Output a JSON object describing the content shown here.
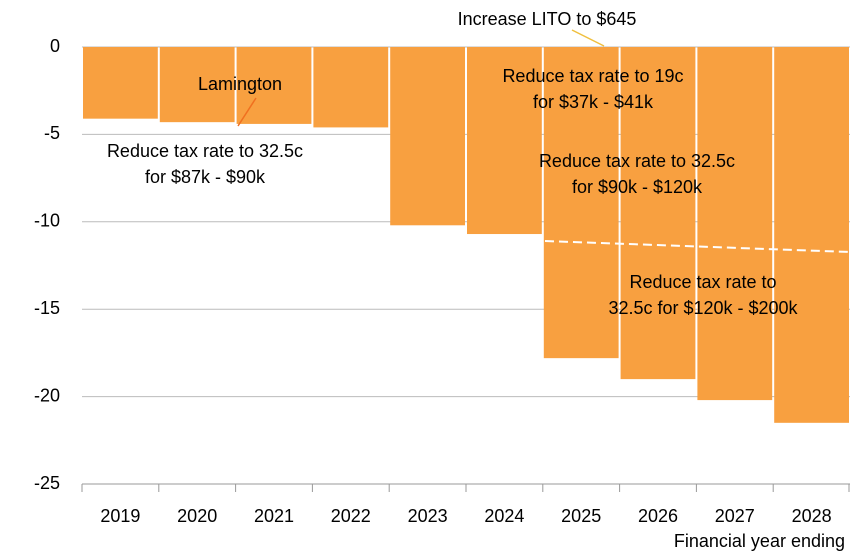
{
  "chart_data": {
    "type": "bar",
    "categories": [
      "2019",
      "2020",
      "2021",
      "2022",
      "2023",
      "2024",
      "2025",
      "2026",
      "2027",
      "2028"
    ],
    "values": [
      -4.1,
      -4.3,
      -4.4,
      -4.6,
      -10.2,
      -10.7,
      -17.8,
      -19.0,
      -20.2,
      -21.5
    ],
    "color": "#f8a040",
    "ylim": [
      -25,
      0
    ],
    "yticks": [
      0,
      -5,
      -10,
      -15,
      -20,
      -25
    ],
    "grid": true,
    "x_label": "Financial year ending",
    "annotations": [
      [
        "Increase LITO to $645"
      ],
      [
        "Lamington"
      ],
      [
        "Reduce tax rate to 32.5c",
        "for $87k - $90k"
      ],
      [
        "Reduce tax rate to 19c",
        "for $37k - $41k"
      ],
      [
        "Reduce tax rate to 32.5c",
        "for $90k - $120k"
      ],
      [
        "Reduce tax rate to",
        "32.5c for $120k - $200k"
      ]
    ]
  }
}
